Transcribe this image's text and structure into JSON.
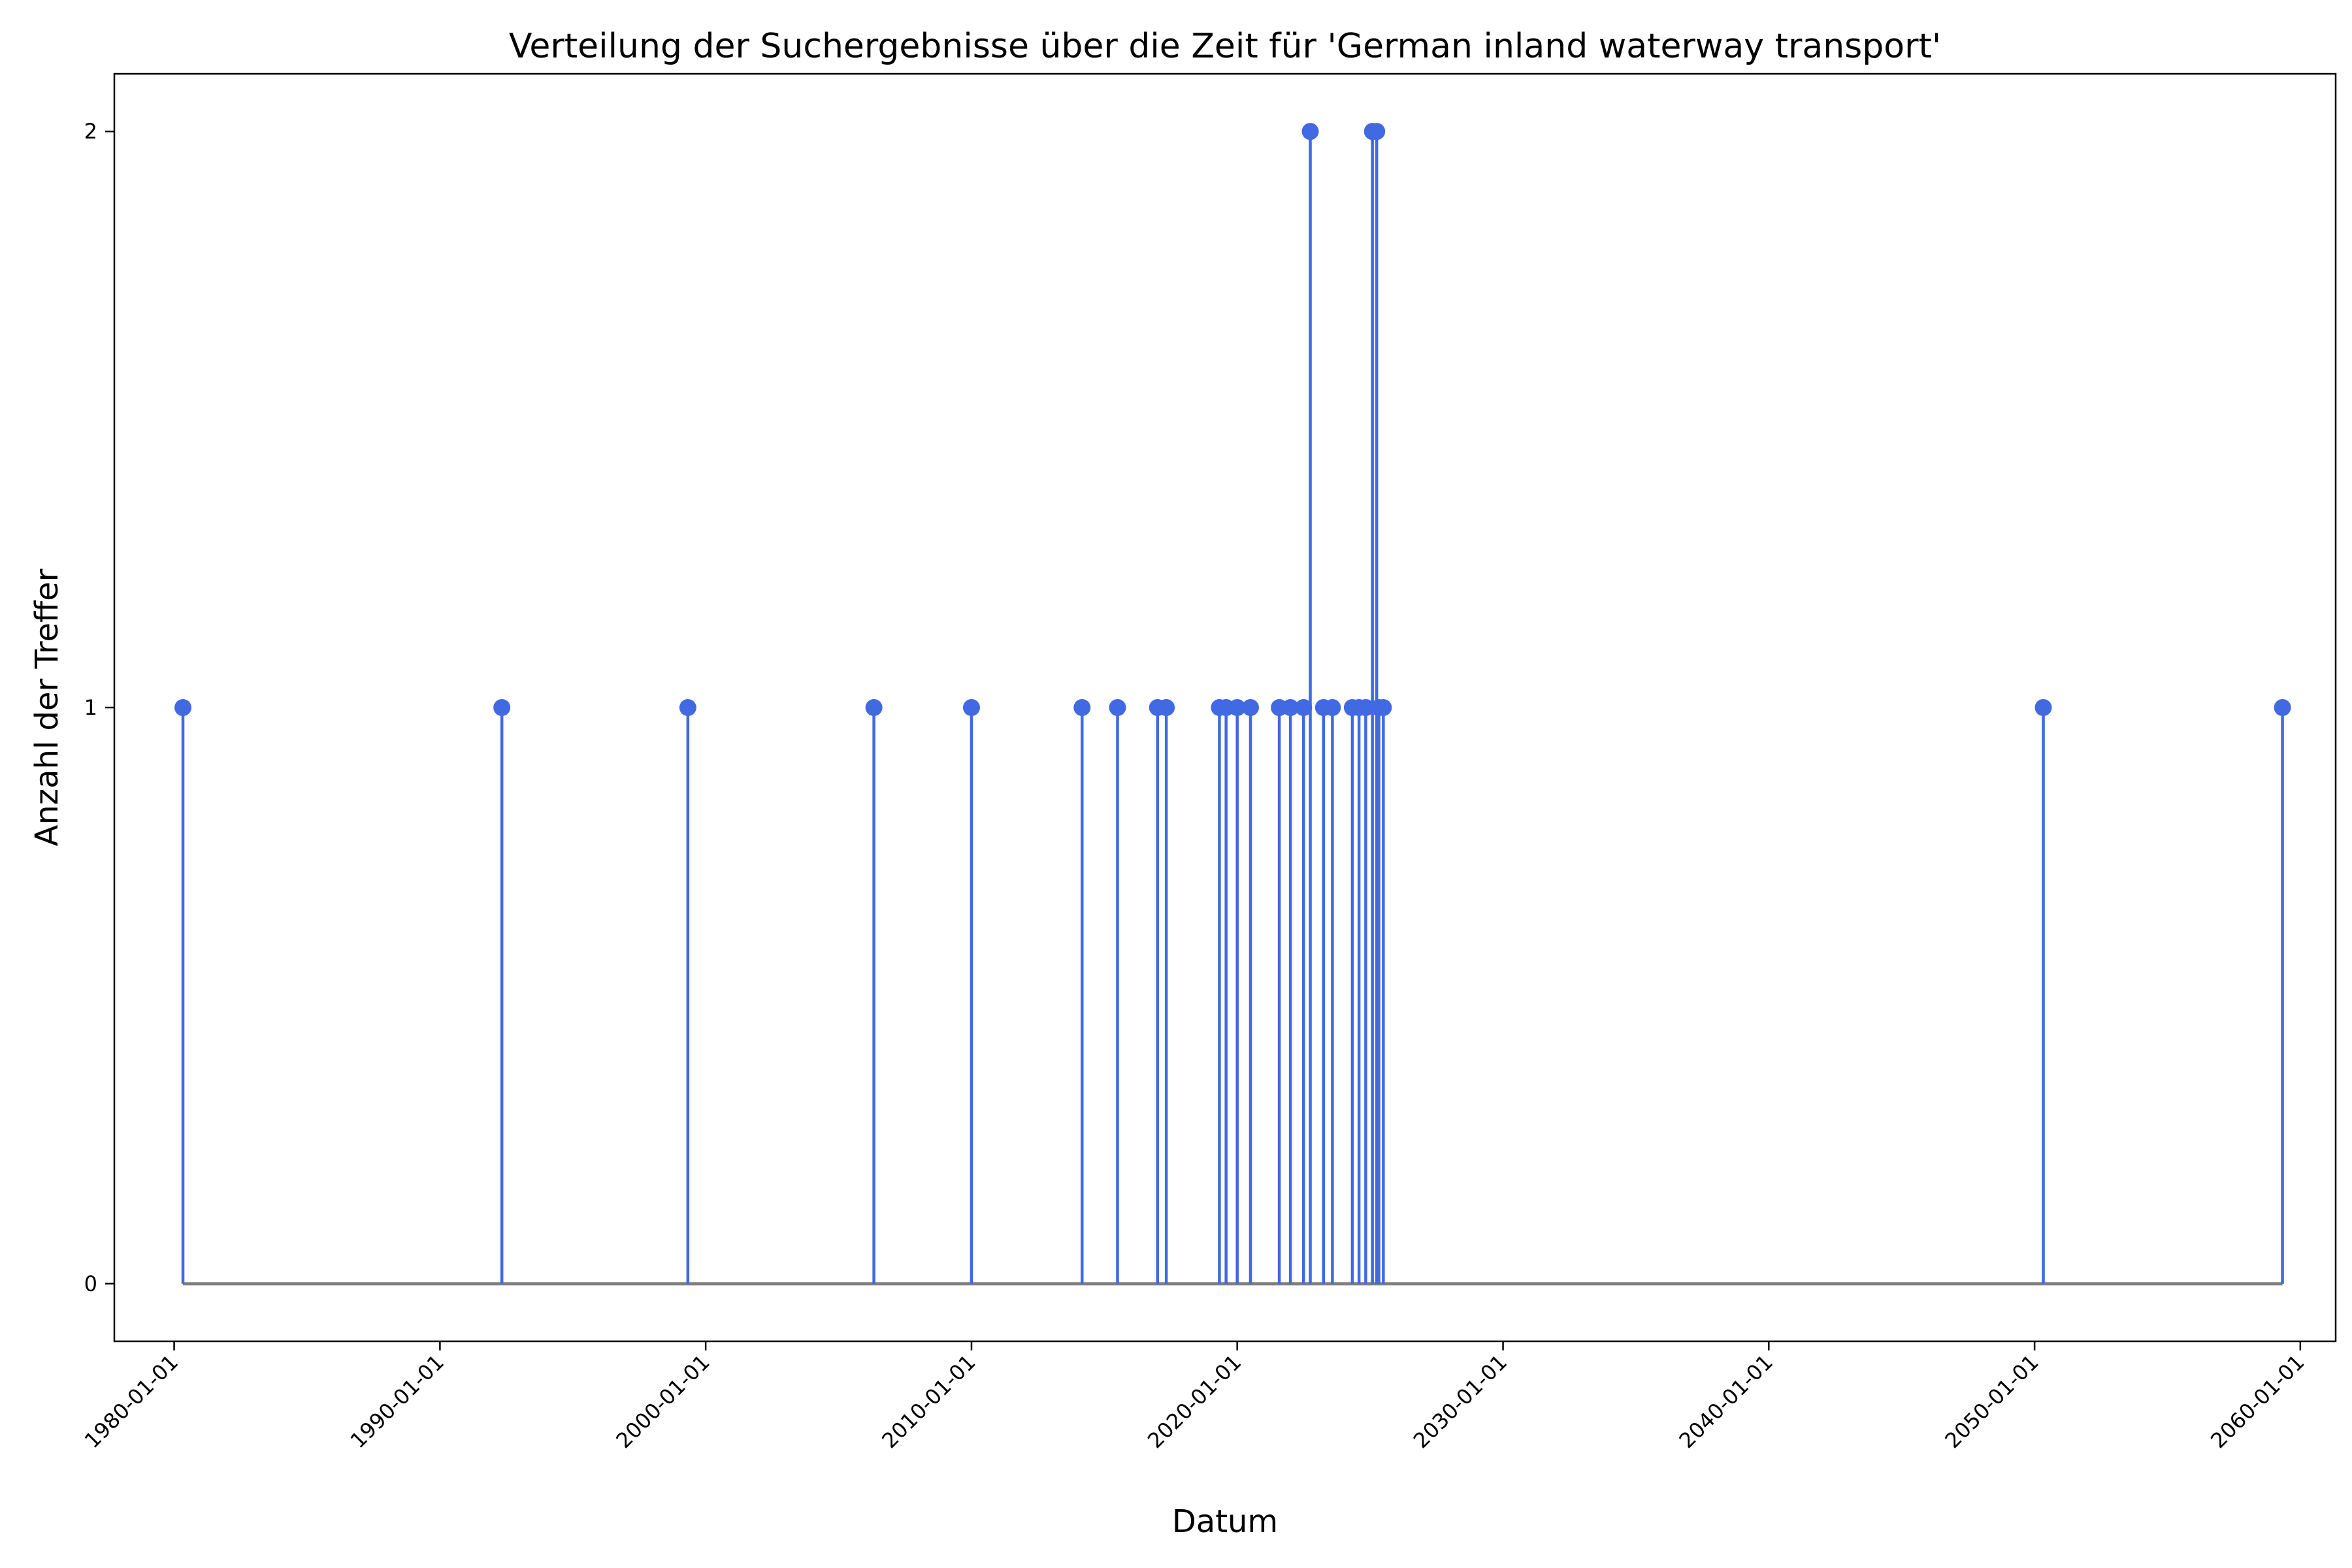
{
  "chart_data": {
    "type": "stem",
    "title": "Verteilung der Suchergebnisse über die Zeit für 'German inland waterway transport'",
    "xlabel": "Datum",
    "ylabel": "Anzahl der Treffer",
    "x_ticks": [
      "1980-01-01",
      "1990-01-01",
      "2000-01-01",
      "2010-01-01",
      "2020-01-01",
      "2030-01-01",
      "2040-01-01",
      "2050-01-01",
      "2060-01-01"
    ],
    "y_ticks": [
      0,
      1,
      2
    ],
    "ylim": [
      -0.1,
      2.1
    ],
    "xlim": [
      "1977-10-01",
      "2061-05-01"
    ],
    "grid": false,
    "colors": {
      "stem": "#4169e1",
      "baseline": "#808080",
      "marker": "#4169e1"
    },
    "points": [
      {
        "x": "1980-05-01",
        "y": 1
      },
      {
        "x": "1992-05-01",
        "y": 1
      },
      {
        "x": "1999-05-01",
        "y": 1
      },
      {
        "x": "2006-05-01",
        "y": 1
      },
      {
        "x": "2010-01-01",
        "y": 1
      },
      {
        "x": "2014-03-01",
        "y": 1
      },
      {
        "x": "2015-07-01",
        "y": 1
      },
      {
        "x": "2017-01-01",
        "y": 1
      },
      {
        "x": "2017-05-01",
        "y": 1
      },
      {
        "x": "2019-05-01",
        "y": 1
      },
      {
        "x": "2019-08-01",
        "y": 1
      },
      {
        "x": "2020-01-01",
        "y": 1
      },
      {
        "x": "2020-07-01",
        "y": 1
      },
      {
        "x": "2021-08-01",
        "y": 1
      },
      {
        "x": "2022-01-01",
        "y": 1
      },
      {
        "x": "2022-07-01",
        "y": 1
      },
      {
        "x": "2022-10-01",
        "y": 2
      },
      {
        "x": "2023-04-01",
        "y": 1
      },
      {
        "x": "2023-08-01",
        "y": 1
      },
      {
        "x": "2024-05-01",
        "y": 1
      },
      {
        "x": "2024-08-01",
        "y": 1
      },
      {
        "x": "2024-11-01",
        "y": 1
      },
      {
        "x": "2025-02-01",
        "y": 2
      },
      {
        "x": "2025-04-01",
        "y": 2
      },
      {
        "x": "2025-05-01",
        "y": 1
      },
      {
        "x": "2025-07-01",
        "y": 1
      },
      {
        "x": "2050-05-01",
        "y": 1
      },
      {
        "x": "2059-05-01",
        "y": 1
      }
    ]
  }
}
